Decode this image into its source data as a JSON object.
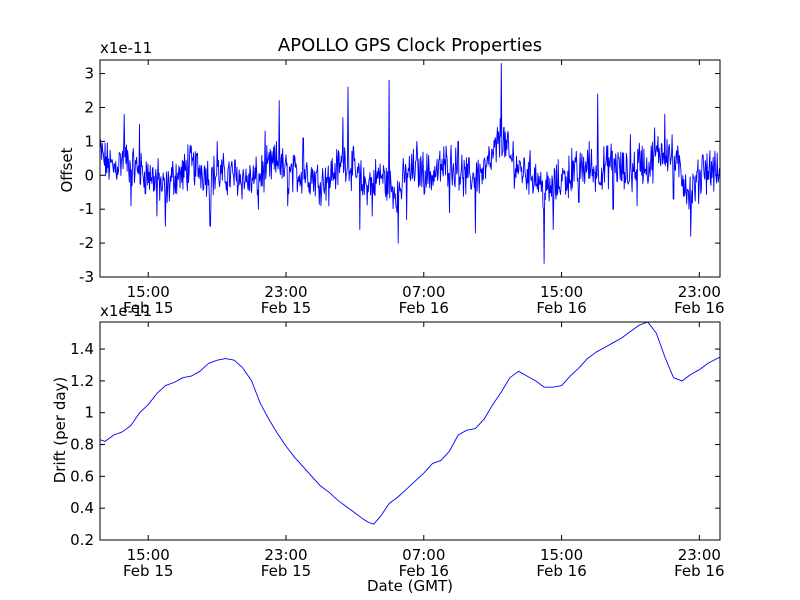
{
  "chart_data": [
    {
      "type": "line",
      "title": "APOLLO GPS Clock Properties",
      "ylabel": "Offset",
      "xlabel": "",
      "y_multiplier": "x1e-11",
      "ylim": [
        -3,
        3.4
      ],
      "yticks": [
        -3,
        -2,
        -1,
        0,
        1,
        2,
        3
      ],
      "xlim_hours": [
        12.2,
        48.2
      ],
      "xticks": [
        {
          "hour": 15,
          "time": "15:00",
          "date": "Feb 15"
        },
        {
          "hour": 23,
          "time": "23:00",
          "date": "Feb 15"
        },
        {
          "hour": 31,
          "time": "07:00",
          "date": "Feb 16"
        },
        {
          "hour": 39,
          "time": "15:00",
          "date": "Feb 16"
        },
        {
          "hour": 47,
          "time": "23:00",
          "date": "Feb 16"
        }
      ],
      "color": "#0000ff",
      "series": [
        {
          "name": "",
          "points": [
            [
              12.2,
              0.7
            ],
            [
              12.5,
              0.4
            ],
            [
              13.0,
              0.2
            ],
            [
              13.5,
              0.5
            ],
            [
              14.0,
              0.3
            ],
            [
              14.5,
              0.1
            ],
            [
              15.0,
              0.0
            ],
            [
              15.5,
              -0.1
            ],
            [
              16.0,
              -0.5
            ],
            [
              16.5,
              0.0
            ],
            [
              17.0,
              0.0
            ],
            [
              17.5,
              0.3
            ],
            [
              18.0,
              0.2
            ],
            [
              18.5,
              0.0
            ],
            [
              19.0,
              0.0
            ],
            [
              19.5,
              0.0
            ],
            [
              20.0,
              0.0
            ],
            [
              20.5,
              -0.1
            ],
            [
              21.0,
              -0.2
            ],
            [
              21.5,
              0.0
            ],
            [
              22.0,
              0.2
            ],
            [
              22.5,
              0.4
            ],
            [
              23.0,
              0.1
            ],
            [
              23.5,
              0.0
            ],
            [
              24.0,
              0.1
            ],
            [
              24.5,
              0.0
            ],
            [
              25.0,
              -0.2
            ],
            [
              25.5,
              0.0
            ],
            [
              26.0,
              0.2
            ],
            [
              26.5,
              0.5
            ],
            [
              27.0,
              0.1
            ],
            [
              27.5,
              -0.3
            ],
            [
              28.0,
              -0.2
            ],
            [
              28.5,
              0.0
            ],
            [
              29.0,
              -0.3
            ],
            [
              29.5,
              -0.5
            ],
            [
              30.0,
              0.0
            ],
            [
              30.5,
              0.2
            ],
            [
              31.0,
              0.1
            ],
            [
              31.5,
              0.0
            ],
            [
              32.0,
              0.2
            ],
            [
              32.5,
              0.4
            ],
            [
              33.0,
              0.1
            ],
            [
              33.5,
              -0.1
            ],
            [
              34.0,
              0.0
            ],
            [
              34.5,
              0.1
            ],
            [
              35.0,
              0.5
            ],
            [
              35.5,
              1.2
            ],
            [
              36.0,
              0.5
            ],
            [
              36.5,
              0.2
            ],
            [
              37.0,
              0.1
            ],
            [
              37.5,
              0.0
            ],
            [
              38.0,
              -0.5
            ],
            [
              38.5,
              -0.4
            ],
            [
              39.0,
              -0.1
            ],
            [
              39.5,
              0.0
            ],
            [
              40.0,
              0.1
            ],
            [
              40.5,
              0.3
            ],
            [
              41.0,
              0.1
            ],
            [
              41.5,
              0.2
            ],
            [
              42.0,
              0.4
            ],
            [
              42.5,
              0.1
            ],
            [
              43.0,
              0.0
            ],
            [
              43.5,
              0.5
            ],
            [
              44.0,
              0.2
            ],
            [
              44.5,
              0.6
            ],
            [
              45.0,
              0.8
            ],
            [
              45.5,
              0.5
            ],
            [
              46.0,
              0.0
            ],
            [
              46.5,
              -0.6
            ],
            [
              47.0,
              -0.1
            ],
            [
              47.5,
              0.2
            ],
            [
              48.2,
              0.0
            ]
          ],
          "spikes": [
            [
              13.6,
              1.8
            ],
            [
              14.0,
              -0.9
            ],
            [
              14.5,
              1.5
            ],
            [
              15.5,
              -1.2
            ],
            [
              16.0,
              -1.5
            ],
            [
              17.3,
              0.9
            ],
            [
              18.6,
              -1.5
            ],
            [
              19.0,
              1.0
            ],
            [
              21.4,
              -1.0
            ],
            [
              21.8,
              1.3
            ],
            [
              22.6,
              2.2
            ],
            [
              23.1,
              -0.9
            ],
            [
              24.0,
              1.1
            ],
            [
              25.5,
              -0.9
            ],
            [
              26.3,
              1.7
            ],
            [
              26.6,
              2.6
            ],
            [
              27.3,
              -1.6
            ],
            [
              28.0,
              -1.2
            ],
            [
              29.0,
              2.8
            ],
            [
              29.5,
              -2.0
            ],
            [
              30.0,
              -1.3
            ],
            [
              30.6,
              1.0
            ],
            [
              32.5,
              -1.1
            ],
            [
              33.0,
              1.0
            ],
            [
              34.0,
              -1.7
            ],
            [
              35.5,
              3.3
            ],
            [
              36.2,
              1.0
            ],
            [
              38.0,
              -2.6
            ],
            [
              38.5,
              -1.6
            ],
            [
              39.6,
              0.8
            ],
            [
              40.0,
              -0.8
            ],
            [
              40.6,
              1.0
            ],
            [
              41.1,
              2.4
            ],
            [
              42.0,
              -1.0
            ],
            [
              43.0,
              1.2
            ],
            [
              43.4,
              -0.9
            ],
            [
              44.4,
              1.4
            ],
            [
              45.0,
              1.8
            ],
            [
              45.5,
              -0.7
            ],
            [
              46.5,
              -1.8
            ],
            [
              47.2,
              0.6
            ]
          ]
        }
      ]
    },
    {
      "type": "line",
      "title": "",
      "ylabel": "Drift (per day)",
      "xlabel": "Date (GMT)",
      "y_multiplier": "x1e-11",
      "ylim": [
        0.2,
        1.57
      ],
      "yticks": [
        0.2,
        0.4,
        0.6,
        0.8,
        1.0,
        1.2,
        1.4
      ],
      "xlim_hours": [
        12.2,
        48.2
      ],
      "xticks": [
        {
          "hour": 15,
          "time": "15:00",
          "date": "Feb 15"
        },
        {
          "hour": 23,
          "time": "23:00",
          "date": "Feb 15"
        },
        {
          "hour": 31,
          "time": "07:00",
          "date": "Feb 16"
        },
        {
          "hour": 39,
          "time": "15:00",
          "date": "Feb 16"
        },
        {
          "hour": 47,
          "time": "23:00",
          "date": "Feb 16"
        }
      ],
      "color": "#0000ff",
      "series": [
        {
          "name": "",
          "points": [
            [
              12.2,
              0.83
            ],
            [
              12.5,
              0.82
            ],
            [
              13.0,
              0.86
            ],
            [
              13.5,
              0.88
            ],
            [
              14.0,
              0.92
            ],
            [
              14.5,
              1.0
            ],
            [
              15.0,
              1.05
            ],
            [
              15.5,
              1.12
            ],
            [
              16.0,
              1.17
            ],
            [
              16.5,
              1.19
            ],
            [
              17.0,
              1.22
            ],
            [
              17.5,
              1.23
            ],
            [
              18.0,
              1.26
            ],
            [
              18.5,
              1.31
            ],
            [
              19.0,
              1.33
            ],
            [
              19.5,
              1.34
            ],
            [
              20.0,
              1.33
            ],
            [
              20.5,
              1.28
            ],
            [
              21.0,
              1.2
            ],
            [
              21.5,
              1.06
            ],
            [
              22.0,
              0.96
            ],
            [
              22.5,
              0.87
            ],
            [
              23.0,
              0.79
            ],
            [
              23.5,
              0.72
            ],
            [
              24.0,
              0.66
            ],
            [
              24.5,
              0.6
            ],
            [
              25.0,
              0.54
            ],
            [
              25.5,
              0.5
            ],
            [
              26.0,
              0.45
            ],
            [
              26.5,
              0.41
            ],
            [
              27.0,
              0.37
            ],
            [
              27.5,
              0.33
            ],
            [
              27.8,
              0.31
            ],
            [
              28.1,
              0.3
            ],
            [
              28.5,
              0.35
            ],
            [
              29.0,
              0.43
            ],
            [
              29.5,
              0.47
            ],
            [
              30.0,
              0.52
            ],
            [
              30.5,
              0.57
            ],
            [
              31.0,
              0.62
            ],
            [
              31.5,
              0.68
            ],
            [
              32.0,
              0.7
            ],
            [
              32.5,
              0.76
            ],
            [
              33.0,
              0.86
            ],
            [
              33.5,
              0.89
            ],
            [
              34.0,
              0.9
            ],
            [
              34.5,
              0.96
            ],
            [
              35.0,
              1.05
            ],
            [
              35.5,
              1.13
            ],
            [
              36.0,
              1.22
            ],
            [
              36.5,
              1.26
            ],
            [
              37.0,
              1.23
            ],
            [
              37.5,
              1.2
            ],
            [
              38.0,
              1.16
            ],
            [
              38.5,
              1.16
            ],
            [
              39.0,
              1.17
            ],
            [
              39.5,
              1.23
            ],
            [
              40.0,
              1.28
            ],
            [
              40.5,
              1.34
            ],
            [
              41.0,
              1.38
            ],
            [
              41.5,
              1.41
            ],
            [
              42.0,
              1.44
            ],
            [
              42.5,
              1.47
            ],
            [
              43.0,
              1.51
            ],
            [
              43.5,
              1.55
            ],
            [
              44.0,
              1.57
            ],
            [
              44.5,
              1.5
            ],
            [
              45.0,
              1.35
            ],
            [
              45.5,
              1.22
            ],
            [
              46.0,
              1.2
            ],
            [
              46.5,
              1.24
            ],
            [
              47.0,
              1.27
            ],
            [
              47.5,
              1.31
            ],
            [
              48.2,
              1.35
            ]
          ]
        }
      ]
    }
  ]
}
